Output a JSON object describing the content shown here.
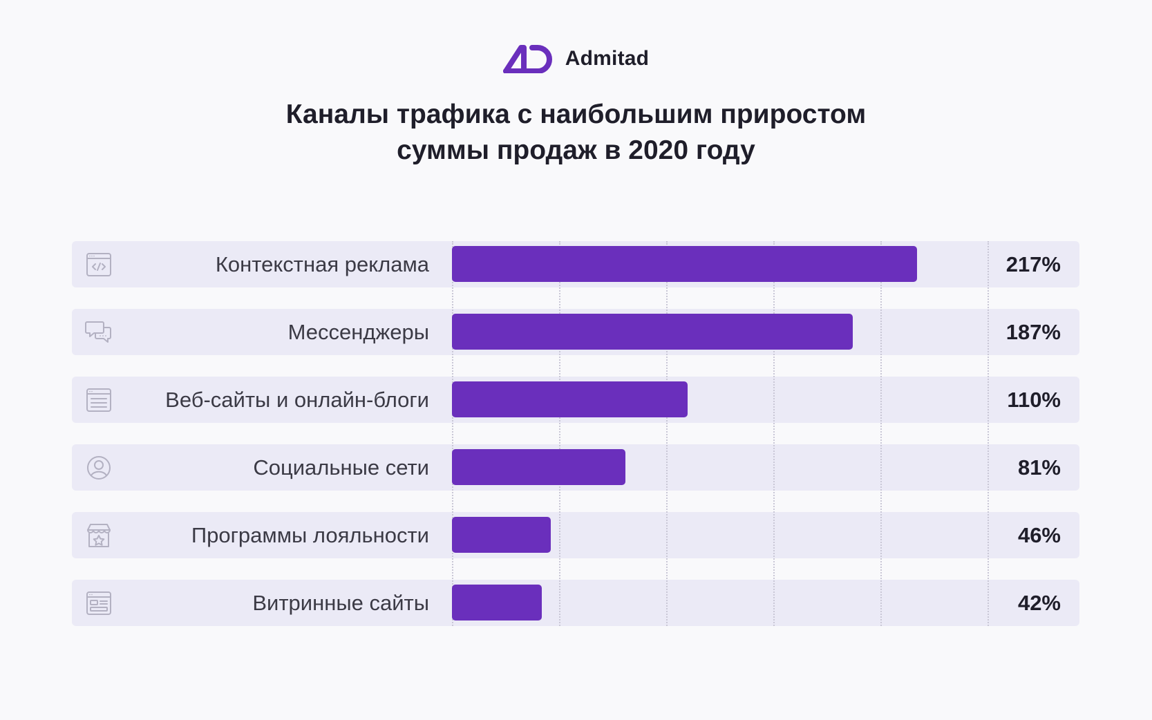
{
  "brand": {
    "name": "Admitad",
    "color": "#6a2fbc"
  },
  "chart_data": {
    "type": "bar",
    "orientation": "horizontal",
    "title_lines": [
      "Каналы трафика с наибольшим приростом",
      "суммы продаж в 2020 году"
    ],
    "categories": [
      "Контекстная реклама",
      "Мессенджеры",
      "Веб-сайты и онлайн-блоги",
      "Социальные сети",
      "Программы лояльности",
      "Витринные сайты"
    ],
    "values": [
      217,
      187,
      110,
      81,
      46,
      42
    ],
    "value_labels": [
      "217%",
      "187%",
      "110%",
      "81%",
      "46%",
      "42%"
    ],
    "icons": [
      "code-window-icon",
      "chat-bubbles-icon",
      "webpage-icon",
      "user-circle-icon",
      "store-star-icon",
      "showcase-site-icon"
    ],
    "xlim": [
      0,
      250
    ],
    "grid": true,
    "bar_color": "#6a2fbc",
    "row_color": "#ebeaf6"
  }
}
